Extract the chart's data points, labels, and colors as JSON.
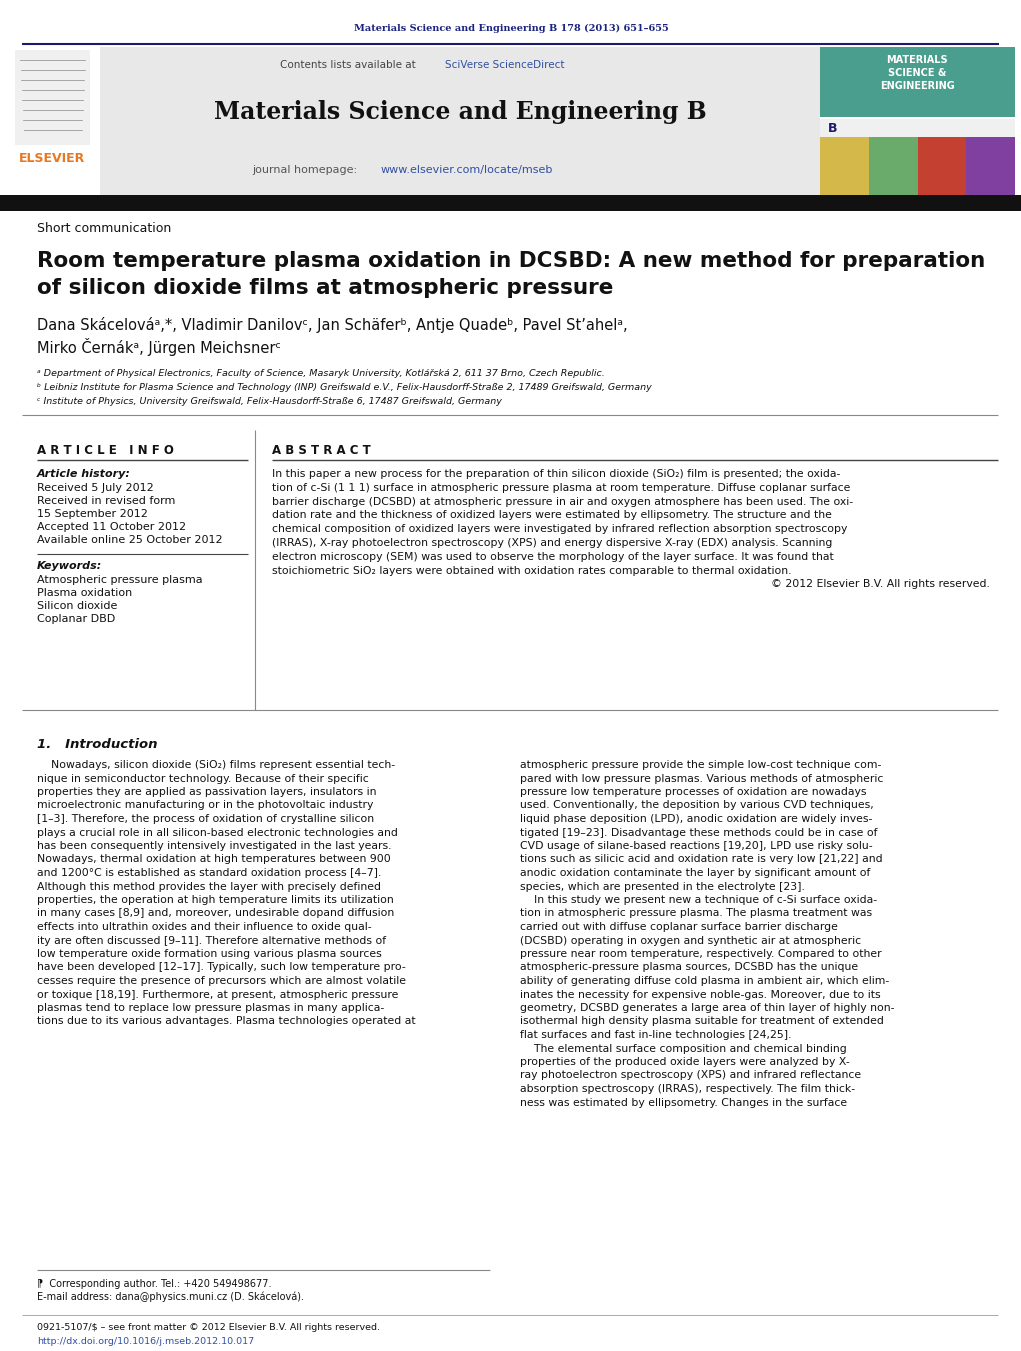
{
  "bg_color": "#ffffff",
  "journal_ref_text": "Materials Science and Engineering B 178 (2013) 651–655",
  "journal_ref_color": "#1a237e",
  "header_text": "Materials Science and Engineering B",
  "contents_text_plain": "Contents lists available at ",
  "contents_text_link": "SciVerse ScienceDirect",
  "journal_url_plain": "journal homepage: ",
  "journal_url_link": "www.elsevier.com/locate/mseb",
  "dark_bar_color": "#111111",
  "elsevier_orange": "#e87722",
  "link_color": "#3050a0",
  "cover_teal": "#4a9e8e",
  "cover_yellow": "#d4b84a",
  "cover_green": "#6aaa6a",
  "cover_red": "#c44030",
  "cover_purple": "#8040a0",
  "section_type": "Short communication",
  "paper_title_line1": "Room temperature plasma oxidation in DCSBD: A new method for preparation",
  "paper_title_line2": "of silicon dioxide films at atmospheric pressure",
  "authors_line1": "Dana Skácelováᵃ,*, Vladimir Danilovᶜ, Jan Schäferᵇ, Antje Quadeᵇ, Pavel Stʼahelᵃ,",
  "authors_line2": "Mirko Černákᵃ, Jürgen Meichsnerᶜ",
  "affil_a": "ᵃ Department of Physical Electronics, Faculty of Science, Masaryk University, Kotlářská 2, 611 37 Brno, Czech Republic.",
  "affil_b": "ᵇ Leibniz Institute for Plasma Science and Technology (INP) Greifswald e.V., Felix-Hausdorff-Straße 2, 17489 Greifswald, Germany",
  "affil_c": "ᶜ Institute of Physics, University Greifswald, Felix-Hausdorff-Straße 6, 17487 Greifswald, Germany",
  "article_info_title": "A R T I C L E   I N F O",
  "abstract_title": "A B S T R A C T",
  "article_history_label": "Article history:",
  "received1": "Received 5 July 2012",
  "received2": "Received in revised form",
  "received2b": "15 September 2012",
  "accepted": "Accepted 11 October 2012",
  "available": "Available online 25 October 2012",
  "keywords_label": "Keywords:",
  "kw1": "Atmospheric pressure plasma",
  "kw2": "Plasma oxidation",
  "kw3": "Silicon dioxide",
  "kw4": "Coplanar DBD",
  "copyright": "© 2012 Elsevier B.V. All rights reserved.",
  "intro_title": "1.   Introduction",
  "footnote_star": "⁋  Corresponding author. Tel.: +420 549498677.",
  "footnote_email": "E-mail address: dana@physics.muni.cz (D. Skácelová).",
  "footer_issn": "0921-5107/$ – see front matter © 2012 Elsevier B.V. All rights reserved.",
  "footer_doi": "http://dx.doi.org/10.1016/j.mseb.2012.10.017",
  "abstract_lines": [
    "In this paper a new process for the preparation of thin silicon dioxide (SiO₂) film is presented; the oxida-",
    "tion of c-Si (1 1 1) surface in atmospheric pressure plasma at room temperature. Diffuse coplanar surface",
    "barrier discharge (DCSBD) at atmospheric pressure in air and oxygen atmosphere has been used. The oxi-",
    "dation rate and the thickness of oxidized layers were estimated by ellipsometry. The structure and the",
    "chemical composition of oxidized layers were investigated by infrared reflection absorption spectroscopy",
    "(IRRAS), X-ray photoelectron spectroscopy (XPS) and energy dispersive X-ray (EDX) analysis. Scanning",
    "electron microscopy (SEM) was used to observe the morphology of the layer surface. It was found that",
    "stoichiometric SiO₂ layers were obtained with oxidation rates comparable to thermal oxidation."
  ],
  "col1_lines": [
    "    Nowadays, silicon dioxide (SiO₂) films represent essential tech-",
    "nique in semiconductor technology. Because of their specific",
    "properties they are applied as passivation layers, insulators in",
    "microelectronic manufacturing or in the photovoltaic industry",
    "[1–3]. Therefore, the process of oxidation of crystalline silicon",
    "plays a crucial role in all silicon-based electronic technologies and",
    "has been consequently intensively investigated in the last years.",
    "Nowadays, thermal oxidation at high temperatures between 900",
    "and 1200°C is established as standard oxidation process [4–7].",
    "Although this method provides the layer with precisely defined",
    "properties, the operation at high temperature limits its utilization",
    "in many cases [8,9] and, moreover, undesirable dopand diffusion",
    "effects into ultrathin oxides and their influence to oxide qual-",
    "ity are often discussed [9–11]. Therefore alternative methods of",
    "low temperature oxide formation using various plasma sources",
    "have been developed [12–17]. Typically, such low temperature pro-",
    "cesses require the presence of precursors which are almost volatile",
    "or toxique [18,19]. Furthermore, at present, atmospheric pressure",
    "plasmas tend to replace low pressure plasmas in many applica-",
    "tions due to its various advantages. Plasma technologies operated at"
  ],
  "col2_lines": [
    "atmospheric pressure provide the simple low-cost technique com-",
    "pared with low pressure plasmas. Various methods of atmospheric",
    "pressure low temperature processes of oxidation are nowadays",
    "used. Conventionally, the deposition by various CVD techniques,",
    "liquid phase deposition (LPD), anodic oxidation are widely inves-",
    "tigated [19–23]. Disadvantage these methods could be in case of",
    "CVD usage of silane-based reactions [19,20], LPD use risky solu-",
    "tions such as silicic acid and oxidation rate is very low [21,22] and",
    "anodic oxidation contaminate the layer by significant amount of",
    "species, which are presented in the electrolyte [23].",
    "    In this study we present new a technique of c-Si surface oxida-",
    "tion in atmospheric pressure plasma. The plasma treatment was",
    "carried out with diffuse coplanar surface barrier discharge",
    "(DCSBD) operating in oxygen and synthetic air at atmospheric",
    "pressure near room temperature, respectively. Compared to other",
    "atmospheric-pressure plasma sources, DCSBD has the unique",
    "ability of generating diffuse cold plasma in ambient air, which elim-",
    "inates the necessity for expensive noble-gas. Moreover, due to its",
    "geometry, DCSBD generates a large area of thin layer of highly non-",
    "isothermal high density plasma suitable for treatment of extended",
    "flat surfaces and fast in-line technologies [24,25].",
    "    The elemental surface composition and chemical binding",
    "properties of the produced oxide layers were analyzed by X-",
    "ray photoelectron spectroscopy (XPS) and infrared reflectance",
    "absorption spectroscopy (IRRAS), respectively. The film thick-",
    "ness was estimated by ellipsometry. Changes in the surface"
  ]
}
